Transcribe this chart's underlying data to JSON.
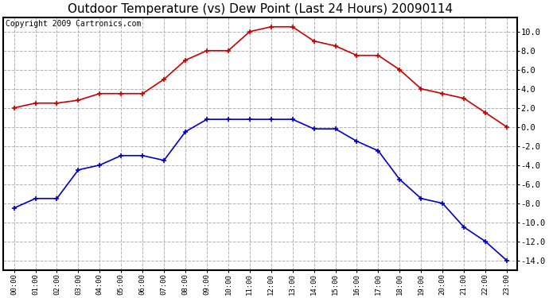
{
  "title": "Outdoor Temperature (vs) Dew Point (Last 24 Hours) 20090114",
  "copyright_text": "Copyright 2009 Cartronics.com",
  "hours": [
    "00:00",
    "01:00",
    "02:00",
    "03:00",
    "04:00",
    "05:00",
    "06:00",
    "07:00",
    "08:00",
    "09:00",
    "10:00",
    "11:00",
    "12:00",
    "13:00",
    "14:00",
    "15:00",
    "16:00",
    "17:00",
    "18:00",
    "19:00",
    "20:00",
    "21:00",
    "22:00",
    "23:00"
  ],
  "temp_red": [
    2.0,
    2.5,
    2.5,
    2.8,
    3.5,
    3.5,
    3.5,
    5.0,
    7.0,
    8.0,
    8.0,
    10.0,
    10.5,
    10.5,
    9.0,
    8.5,
    7.5,
    7.5,
    6.0,
    4.0,
    3.5,
    3.0,
    1.5,
    0.0
  ],
  "dew_blue": [
    -8.5,
    -7.5,
    -7.5,
    -4.5,
    -4.0,
    -3.0,
    -3.0,
    -3.5,
    -0.5,
    0.8,
    0.8,
    0.8,
    0.8,
    0.8,
    -0.2,
    -0.2,
    -1.5,
    -2.5,
    -5.5,
    -7.5,
    -8.0,
    -10.5,
    -12.0,
    -14.0
  ],
  "ylim_min": -15.0,
  "ylim_max": 11.5,
  "yticks": [
    -14.0,
    -12.0,
    -10.0,
    -8.0,
    -6.0,
    -4.0,
    -2.0,
    0.0,
    2.0,
    4.0,
    6.0,
    8.0,
    10.0
  ],
  "bg_color": "#ffffff",
  "grid_color": "#aaaaaa",
  "line_color_red": "#cc0000",
  "line_color_blue": "#0000cc",
  "title_fontsize": 11,
  "copyright_fontsize": 7
}
